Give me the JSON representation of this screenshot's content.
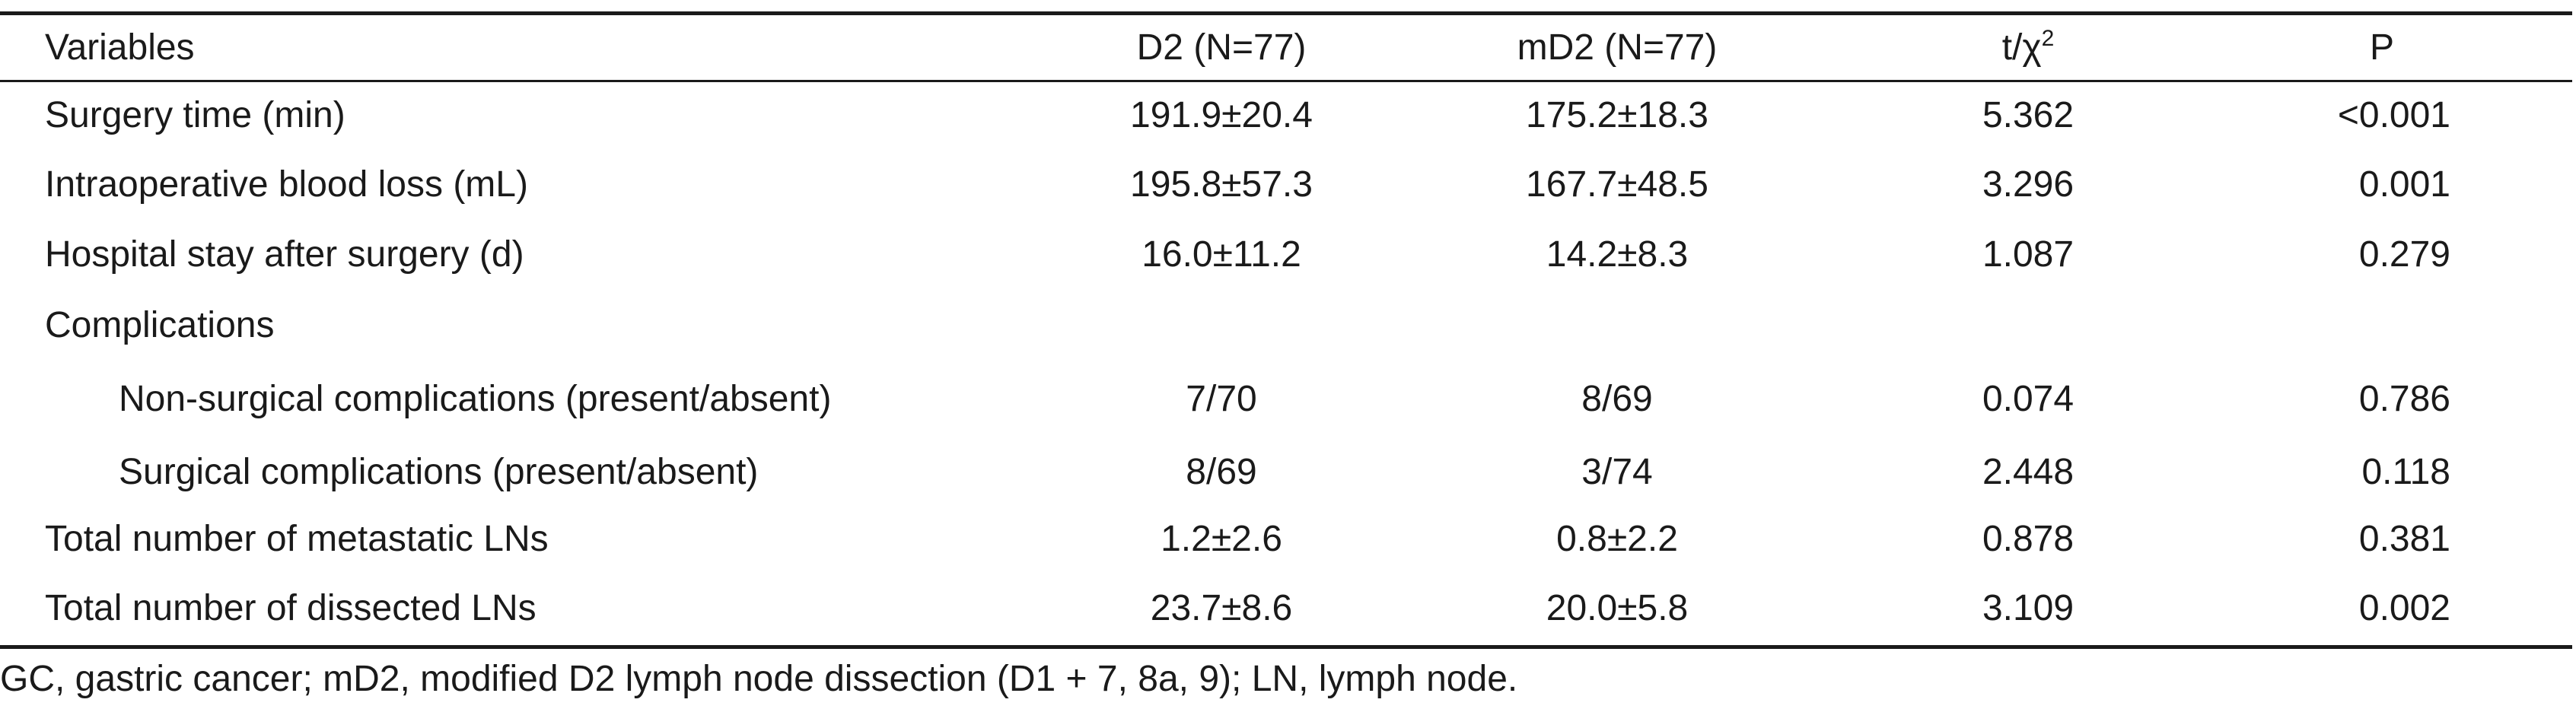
{
  "table": {
    "headers": {
      "variables": "Variables",
      "d2": "D2 (N=77)",
      "md2": "mD2 (N=77)",
      "stat": "t/χ",
      "stat_sup": "2",
      "p": "P"
    },
    "rows": [
      {
        "variable": "Surgery time (min)",
        "d2": "191.9±20.4",
        "md2": "175.2±18.3",
        "stat": "5.362",
        "p": "<0.001"
      },
      {
        "variable": "Intraoperative blood loss (mL)",
        "d2": "195.8±57.3",
        "md2": "167.7±48.5",
        "stat": "3.296",
        "p": "0.001"
      },
      {
        "variable": "Hospital stay after surgery (d)",
        "d2": "16.0±11.2",
        "md2": "14.2±8.3",
        "stat": "1.087",
        "p": "0.279"
      },
      {
        "variable": "Complications",
        "d2": "",
        "md2": "",
        "stat": "",
        "p": ""
      },
      {
        "variable": "Non-surgical complications (present/absent)",
        "d2": "7/70",
        "md2": "8/69",
        "stat": "0.074",
        "p": "0.786"
      },
      {
        "variable": "Surgical complications (present/absent)",
        "d2": "8/69",
        "md2": "3/74",
        "stat": "2.448",
        "p": "0.118"
      },
      {
        "variable": "Total number of metastatic LNs",
        "d2": "1.2±2.6",
        "md2": "0.8±2.2",
        "stat": "0.878",
        "p": "0.381"
      },
      {
        "variable": "Total number of dissected LNs",
        "d2": "23.7±8.6",
        "md2": "20.0±5.8",
        "stat": "3.109",
        "p": "0.002"
      }
    ]
  },
  "footnote": "GC, gastric cancer; mD2, modified D2 lymph node dissection (D1 + 7, 8a, 9); LN, lymph node."
}
